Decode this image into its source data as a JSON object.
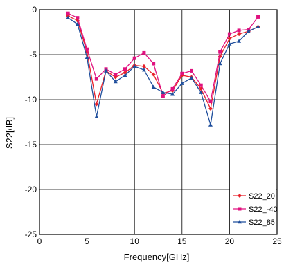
{
  "chart_data": {
    "type": "line",
    "title": "",
    "xlabel": "Frequency[GHz]",
    "ylabel": "S22[dB]",
    "xlim": [
      0,
      25
    ],
    "ylim": [
      -25,
      0
    ],
    "xticks": [
      "0",
      "5",
      "10",
      "15",
      "20",
      "25"
    ],
    "yticks": [
      "0",
      "-5",
      "-10",
      "-15",
      "-20",
      "-25"
    ],
    "grid": true,
    "legend_position": "bottom-right",
    "series": [
      {
        "name": "S22_20",
        "color": "#e8202a",
        "marker": "diamond",
        "x": [
          3,
          4,
          5,
          6,
          7,
          8,
          9,
          10,
          11,
          12,
          13,
          14,
          15,
          16,
          17,
          18,
          19,
          20,
          21,
          22,
          23
        ],
        "y": [
          -0.7,
          -1.2,
          -4.7,
          -10.5,
          -6.8,
          -7.5,
          -7.0,
          -6.2,
          -6.3,
          -7.2,
          -9.3,
          -9.0,
          -7.3,
          -7.5,
          -8.8,
          -11.0,
          -5.2,
          -3.2,
          -2.7,
          -2.4,
          -1.9
        ]
      },
      {
        "name": "S22_-40",
        "color": "#e0117f",
        "marker": "square",
        "x": [
          3,
          4,
          5,
          6,
          7,
          8,
          9,
          10,
          11,
          12,
          13,
          14,
          15,
          16,
          17,
          18,
          19,
          20,
          21,
          22,
          23
        ],
        "y": [
          -0.4,
          -0.9,
          -4.4,
          -7.7,
          -6.6,
          -7.2,
          -6.6,
          -5.4,
          -4.8,
          -6.0,
          -9.6,
          -8.8,
          -7.1,
          -6.8,
          -8.4,
          -10.2,
          -4.7,
          -2.7,
          -2.3,
          -2.2,
          -0.8
        ]
      },
      {
        "name": "S22_85",
        "color": "#1f4e9c",
        "marker": "triangle",
        "x": [
          3,
          4,
          5,
          6,
          7,
          8,
          9,
          10,
          11,
          12,
          13,
          14,
          15,
          16,
          17,
          18,
          19,
          20,
          21,
          22,
          23
        ],
        "y": [
          -0.9,
          -1.6,
          -5.3,
          -11.9,
          -6.8,
          -8.0,
          -7.3,
          -6.3,
          -6.7,
          -8.6,
          -9.2,
          -9.4,
          -8.2,
          -7.6,
          -9.2,
          -12.8,
          -6.0,
          -3.8,
          -3.5,
          -2.4,
          -1.9
        ]
      }
    ]
  }
}
